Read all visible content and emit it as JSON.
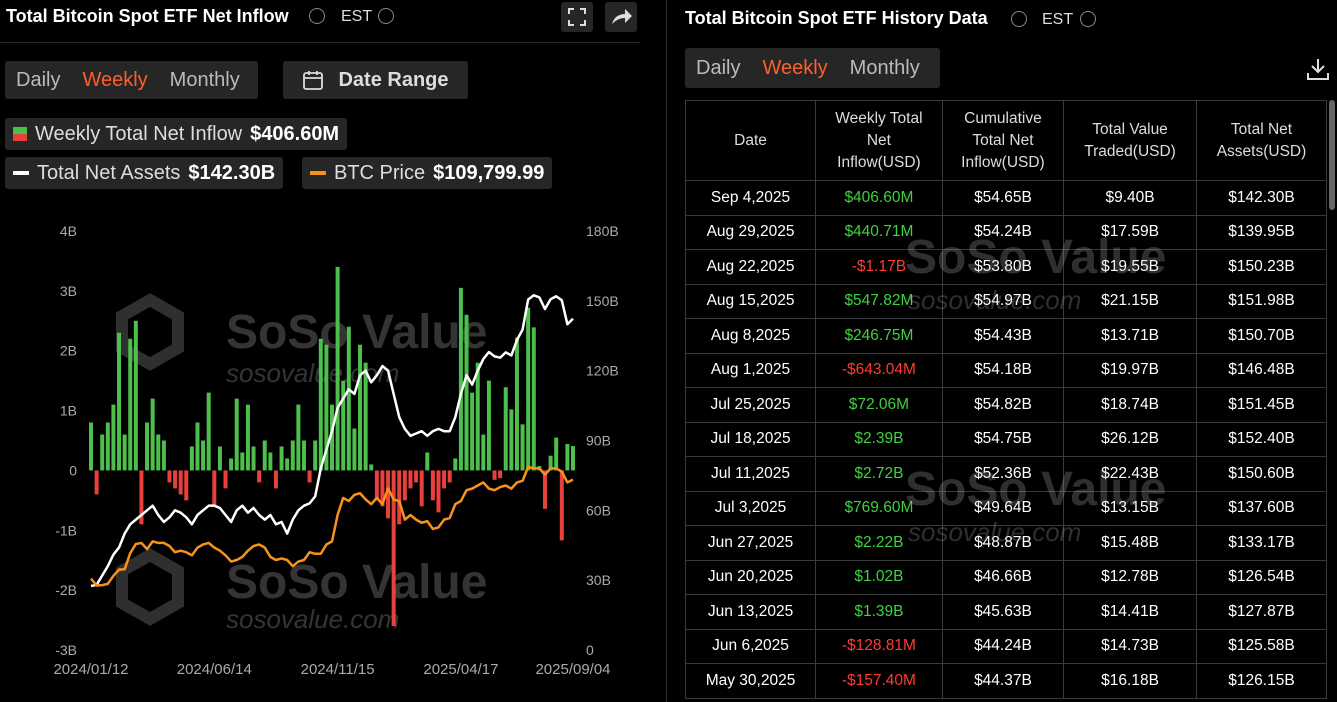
{
  "inflow_panel": {
    "title": "Total Bitcoin Spot ETF Net Inflow",
    "timezone": "EST",
    "tabs": [
      "Daily",
      "Weekly",
      "Monthly"
    ],
    "active_tab": 1,
    "date_button": "Date Range"
  },
  "chart_data": {
    "type": "bar",
    "categories": [
      "2024/01/12",
      null,
      null,
      null,
      null,
      null,
      null,
      null,
      null,
      null,
      null,
      null,
      null,
      null,
      null,
      null,
      null,
      null,
      null,
      null,
      null,
      null,
      "2024/06/14",
      null,
      null,
      null,
      null,
      null,
      null,
      null,
      null,
      null,
      null,
      null,
      null,
      null,
      null,
      null,
      null,
      null,
      null,
      null,
      null,
      null,
      "2024/11/15",
      null,
      null,
      null,
      null,
      null,
      null,
      null,
      null,
      null,
      null,
      null,
      null,
      null,
      null,
      null,
      null,
      null,
      null,
      null,
      null,
      null,
      "2025/04/17",
      null,
      null,
      null,
      null,
      null,
      null,
      null,
      null,
      null,
      null,
      null,
      null,
      null,
      null,
      null,
      null,
      null,
      null,
      null,
      "2025/09/04"
    ],
    "series": [
      {
        "name": "Weekly Total Net Inflow",
        "summary": "$406.60M",
        "type": "bar",
        "color": "#4cbf4c",
        "negative_color": "#e8413c",
        "values": [
          0.8,
          -0.4,
          0.6,
          0.8,
          1.1,
          2.3,
          0.6,
          2.2,
          2.5,
          -0.9,
          0.8,
          1.2,
          0.6,
          0.5,
          -0.2,
          -0.3,
          -0.4,
          -0.5,
          0.4,
          0.8,
          0.5,
          1.3,
          -0.6,
          0.4,
          -0.3,
          0.2,
          1.2,
          0.3,
          1.1,
          0.4,
          -0.2,
          0.5,
          0.3,
          -0.3,
          0.4,
          0.2,
          0.5,
          1.1,
          0.5,
          -0.2,
          0.5,
          2.2,
          2.1,
          1.1,
          3.4,
          1.5,
          2.4,
          0.7,
          2.1,
          1.8,
          0.1,
          -0.5,
          -0.6,
          -0.8,
          -2.6,
          -0.9,
          -0.5,
          -0.3,
          -0.2,
          -0.6,
          0.3,
          -0.5,
          -0.7,
          -0.3,
          -0.2,
          0.2,
          3.05,
          2.6,
          1.3,
          1.8,
          0.6,
          1.5,
          -0.1574,
          -0.12881,
          1.39,
          1.02,
          2.22,
          0.7696,
          2.72,
          2.39,
          0.07206,
          -0.64304,
          0.24675,
          0.54782,
          -1.17,
          0.44071,
          0.4066
        ]
      },
      {
        "name": "Total Net Assets",
        "summary": "$142.30B",
        "type": "line",
        "axis": "y2",
        "color": "#ffffff",
        "values": [
          27.5,
          28,
          32,
          36,
          41,
          44,
          50,
          54,
          56,
          58,
          60,
          62,
          58,
          55,
          57,
          60,
          59,
          57,
          54,
          58,
          60,
          62,
          62,
          61,
          58,
          55,
          60,
          62,
          59,
          61,
          58,
          56,
          58,
          54,
          55,
          50,
          56,
          60,
          62,
          63,
          66,
          78,
          86,
          94,
          104,
          108,
          112,
          110,
          118,
          120,
          115,
          118,
          122,
          120,
          110,
          100,
          95,
          92,
          93,
          94,
          92,
          94,
          95,
          94,
          94,
          100,
          110,
          118,
          114,
          120,
          125,
          128,
          126.15,
          125.58,
          127.87,
          126.54,
          133.17,
          137.6,
          150.6,
          152.4,
          151.45,
          146.48,
          150.7,
          151.98,
          150.23,
          139.95,
          142.3
        ]
      },
      {
        "name": "BTC Price",
        "summary": "$109,799.99",
        "type": "line",
        "axis": "y3",
        "color": "#f7931a",
        "values": [
          46000,
          41600,
          41800,
          42600,
          47800,
          51800,
          52000,
          62400,
          68300,
          69000,
          65000,
          70000,
          69000,
          69000,
          67000,
          63000,
          64000,
          63000,
          61000,
          66000,
          68000,
          69000,
          66000,
          64000,
          61000,
          57000,
          58000,
          60000,
          64000,
          67000,
          68000,
          66000,
          60000,
          58000,
          59000,
          58000,
          54000,
          57000,
          58000,
          63000,
          62000,
          62000,
          68000,
          70000,
          87000,
          98000,
          96000,
          100000,
          101000,
          97000,
          94000,
          98000,
          94000,
          104000,
          97000,
          96000,
          84000,
          87000,
          84000,
          82000,
          83000,
          78000,
          79000,
          84000,
          85000,
          94000,
          96000,
          103000,
          104000,
          106000,
          108000,
          104000,
          103000,
          105000,
          106000,
          104000,
          108000,
          109000,
          118000,
          117000,
          117000,
          113000,
          117000,
          117000,
          115000,
          108000,
          109799.99
        ]
      }
    ],
    "ylim": [
      -3,
      4
    ],
    "yticks": [
      {
        "value": -3,
        "label": "-3B"
      },
      {
        "value": -2,
        "label": "-2B"
      },
      {
        "value": -1,
        "label": "-1B"
      },
      0,
      {
        "value": 1,
        "label": "1B"
      },
      {
        "value": 2,
        "label": "2B"
      },
      {
        "value": 3,
        "label": "3B"
      },
      {
        "value": 4,
        "label": "4B"
      }
    ],
    "y2lim": [
      0,
      180
    ],
    "y2ticks": [
      0,
      {
        "value": 30,
        "label": "30B"
      },
      {
        "value": 60,
        "label": "60B"
      },
      {
        "value": 90,
        "label": "90B"
      },
      {
        "value": 120,
        "label": "120B"
      },
      {
        "value": 150,
        "label": "150B"
      },
      {
        "value": 180,
        "label": "180B"
      }
    ],
    "y3lim": [
      0,
      270000
    ],
    "grid": false
  },
  "watermark": {
    "brand": "SoSo Value",
    "url": "sosovalue.com"
  },
  "history_panel": {
    "title": "Total Bitcoin Spot ETF History Data",
    "timezone": "EST",
    "tabs": [
      "Daily",
      "Weekly",
      "Monthly"
    ],
    "active_tab": 1
  },
  "table": {
    "columns": [
      "Date",
      "Weekly Total\nNet\nInflow(USD)",
      "Cumulative\nTotal Net\nInflow(USD)",
      "Total Value\nTraded(USD)",
      "Total Net\nAssets(USD)"
    ],
    "rows": [
      [
        "Sep 4,2025",
        "$406.60M",
        "$54.65B",
        "$9.40B",
        "$142.30B"
      ],
      [
        "Aug 29,2025",
        "$440.71M",
        "$54.24B",
        "$17.59B",
        "$139.95B"
      ],
      [
        "Aug 22,2025",
        "-$1.17B",
        "$53.80B",
        "$19.55B",
        "$150.23B"
      ],
      [
        "Aug 15,2025",
        "$547.82M",
        "$54.97B",
        "$21.15B",
        "$151.98B"
      ],
      [
        "Aug 8,2025",
        "$246.75M",
        "$54.43B",
        "$13.71B",
        "$150.70B"
      ],
      [
        "Aug 1,2025",
        "-$643.04M",
        "$54.18B",
        "$19.97B",
        "$146.48B"
      ],
      [
        "Jul 25,2025",
        "$72.06M",
        "$54.82B",
        "$18.74B",
        "$151.45B"
      ],
      [
        "Jul 18,2025",
        "$2.39B",
        "$54.75B",
        "$26.12B",
        "$152.40B"
      ],
      [
        "Jul 11,2025",
        "$2.72B",
        "$52.36B",
        "$22.43B",
        "$150.60B"
      ],
      [
        "Jul 3,2025",
        "$769.60M",
        "$49.64B",
        "$13.15B",
        "$137.60B"
      ],
      [
        "Jun 27,2025",
        "$2.22B",
        "$48.87B",
        "$15.48B",
        "$133.17B"
      ],
      [
        "Jun 20,2025",
        "$1.02B",
        "$46.66B",
        "$12.78B",
        "$126.54B"
      ],
      [
        "Jun 13,2025",
        "$1.39B",
        "$45.63B",
        "$14.41B",
        "$127.87B"
      ],
      [
        "Jun 6,2025",
        "-$128.81M",
        "$44.24B",
        "$14.73B",
        "$125.58B"
      ],
      [
        "May 30,2025",
        "-$157.40M",
        "$44.37B",
        "$16.18B",
        "$126.15B"
      ]
    ]
  }
}
